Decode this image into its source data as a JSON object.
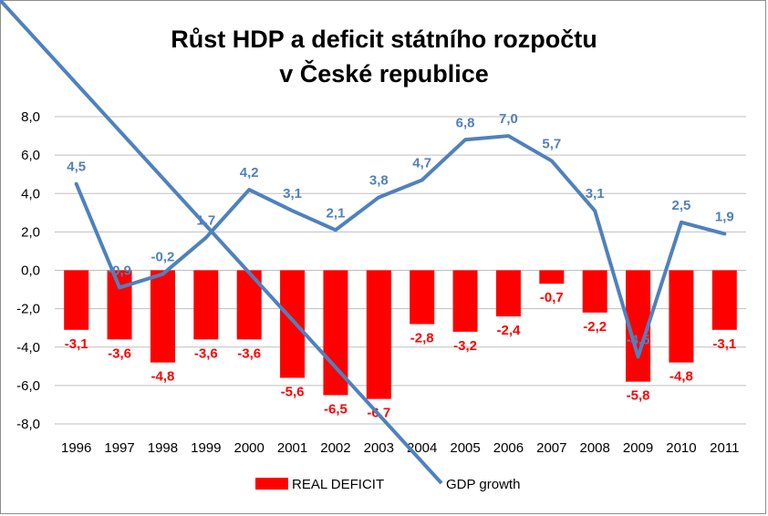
{
  "title": {
    "line1": "Růst HDP a deficit státního rozpočtu",
    "line2": "v České republice"
  },
  "colors": {
    "deficit": "#ff0000",
    "growth": "#4f81bd",
    "grid": "#bfbfbf"
  },
  "legend": {
    "deficit": "REAL DEFICIT",
    "growth": "GDP growth"
  },
  "chart_data": {
    "type": "bar",
    "title": "Růst HDP a deficit státního rozpočtu v České republice",
    "categories": [
      "1996",
      "1997",
      "1998",
      "1999",
      "2000",
      "2001",
      "2002",
      "2003",
      "2004",
      "2005",
      "2006",
      "2007",
      "2008",
      "2009",
      "2010",
      "2011"
    ],
    "series": [
      {
        "name": "REAL DEFICIT",
        "kind": "bar",
        "values": [
          -3.1,
          -3.6,
          -4.8,
          -3.6,
          -3.6,
          -5.6,
          -6.5,
          -6.7,
          -2.8,
          -3.2,
          -2.4,
          -0.7,
          -2.2,
          -5.8,
          -4.8,
          -3.1
        ],
        "labels": [
          "-3,1",
          "-3,6",
          "-4,8",
          "-3,6",
          "-3,6",
          "-5,6",
          "-6,5",
          "-6,7",
          "-2,8",
          "-3,2",
          "-2,4",
          "-0,7",
          "-2,2",
          "-5,8",
          "-4,8",
          "-3,1"
        ]
      },
      {
        "name": "GDP growth",
        "kind": "line",
        "values": [
          4.5,
          -0.9,
          -0.2,
          1.7,
          4.2,
          3.1,
          2.1,
          3.8,
          4.7,
          6.8,
          7.0,
          5.7,
          3.1,
          -4.5,
          2.5,
          1.9
        ],
        "labels": [
          "4,5",
          "-0,9",
          "-0,2",
          "1,7",
          "4,2",
          "3,1",
          "2,1",
          "3,8",
          "4,7",
          "6,8",
          "7,0",
          "5,7",
          "3,1",
          "-4,5",
          "2,5",
          "1,9"
        ]
      }
    ],
    "yticks": [
      "8,0",
      "6,0",
      "4,0",
      "2,0",
      "0,0",
      "-2,0",
      "-4,0",
      "-6,0",
      "-8,0"
    ],
    "ylim": [
      -8,
      8
    ],
    "grid": true,
    "legend_position": "bottom"
  }
}
